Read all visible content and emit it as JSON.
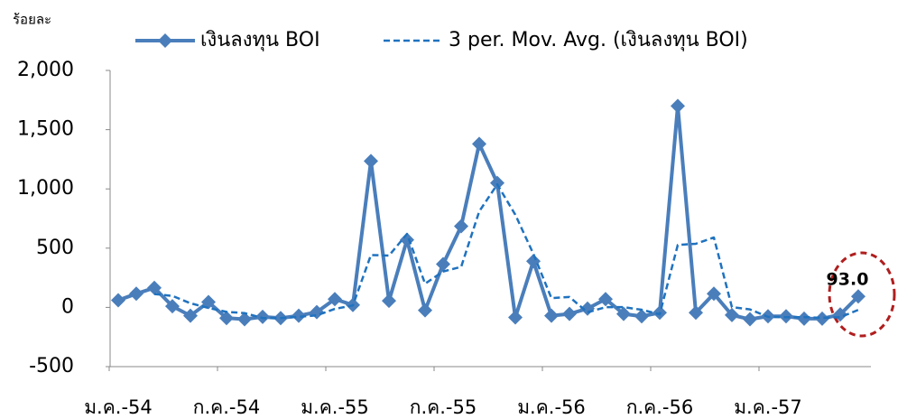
{
  "chart_data": {
    "type": "line",
    "y_label": "ร้อยละ",
    "categories": [
      "ม.ค.-54",
      null,
      null,
      null,
      null,
      null,
      "ก.ค.-54",
      null,
      null,
      null,
      null,
      null,
      "ม.ค.-55",
      null,
      null,
      null,
      null,
      null,
      "ก.ค.-55",
      null,
      null,
      null,
      null,
      null,
      "ม.ค.-56",
      null,
      null,
      null,
      null,
      null,
      "ก.ค.-56",
      null,
      null,
      null,
      null,
      null,
      "ม.ค.-57",
      null,
      null,
      null,
      null,
      null
    ],
    "series": [
      {
        "name": "เงินลงทุน BOI",
        "color": "#4a7ebb",
        "style": "solid-marker",
        "values": [
          60,
          115,
          165,
          10,
          -70,
          45,
          -90,
          -100,
          -80,
          -90,
          -70,
          -40,
          70,
          20,
          1235,
          55,
          570,
          -25,
          365,
          685,
          1380,
          1050,
          -85,
          390,
          -70,
          -55,
          -10,
          70,
          -55,
          -75,
          -45,
          1700,
          -45,
          115,
          -65,
          -100,
          -75,
          -75,
          -95,
          -95,
          -60,
          93
        ],
        "value_labels": [
          null,
          null,
          null,
          null,
          null,
          null,
          null,
          null,
          null,
          null,
          null,
          null,
          null,
          null,
          null,
          null,
          null,
          null,
          null,
          null,
          null,
          null,
          null,
          null,
          null,
          null,
          null,
          null,
          null,
          null,
          null,
          null,
          null,
          null,
          null,
          null,
          null,
          null,
          null,
          null,
          null,
          "93.0"
        ]
      },
      {
        "name": "3 per. Mov. Avg. (เงินลงทุน BOI)",
        "color": "#1f72bf",
        "style": "dashed",
        "values": [
          null,
          null,
          113,
          97,
          35,
          -5,
          -38,
          -48,
          -90,
          -90,
          -80,
          -67,
          -13,
          17,
          442,
          437,
          620,
          200,
          303,
          342,
          810,
          1038,
          782,
          452,
          78,
          88,
          -42,
          2,
          2,
          -20,
          -58,
          527,
          537,
          590,
          2,
          -17,
          -80,
          -83,
          -82,
          -88,
          -83,
          -21
        ]
      }
    ],
    "ylim": [
      -500,
      2000
    ],
    "yticks": [
      -500,
      0,
      500,
      {
        "value": 1000,
        "label": "1,000"
      },
      {
        "value": 1500,
        "label": "1,500"
      },
      {
        "value": 2000,
        "label": "2,000"
      }
    ],
    "grid": false,
    "legend": "top"
  }
}
